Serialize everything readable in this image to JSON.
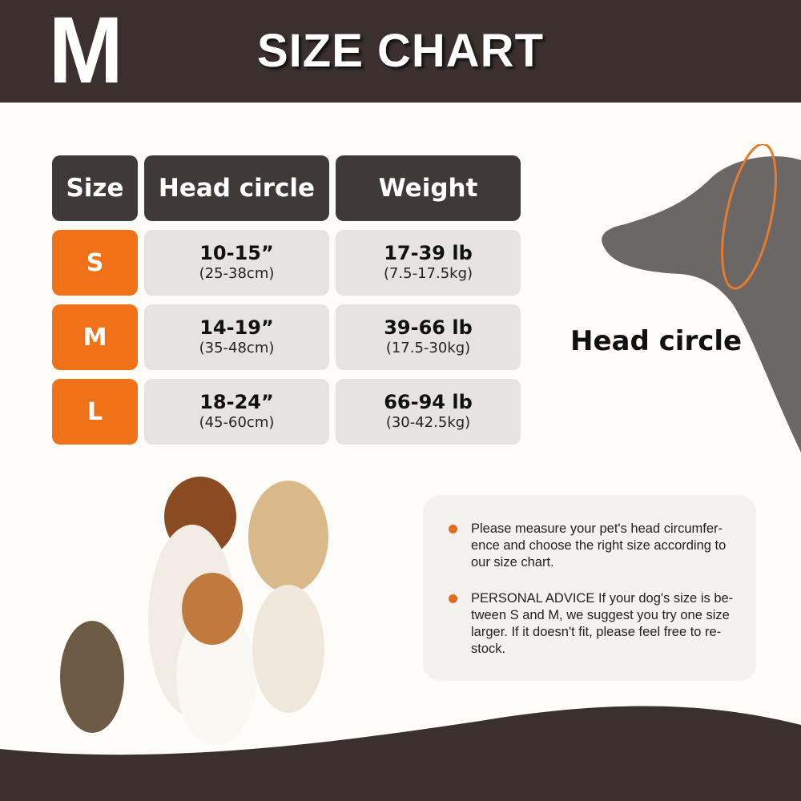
{
  "header": {
    "size_letter": "M",
    "title": "SIZE CHART"
  },
  "table": {
    "headers": [
      "Size",
      "Head circle",
      "Weight"
    ],
    "rows": [
      {
        "size": "S",
        "head": "10-15”",
        "head_cm": "(25-38cm)",
        "weight": "17-39 lb",
        "weight_kg": "(7.5-17.5kg)"
      },
      {
        "size": "M",
        "head": "14-19”",
        "head_cm": "(35-48cm)",
        "weight": "39-66 lb",
        "weight_kg": "(17.5-30kg)"
      },
      {
        "size": "L",
        "head": "18-24”",
        "head_cm": "(45-60cm)",
        "weight": "66-94 lb",
        "weight_kg": "(30-42.5kg)"
      }
    ]
  },
  "diagram": {
    "label": "Head circle"
  },
  "notes": [
    "Please measure your pet's head circumfer-ence and choose the right size according to our size chart.",
    "PERSONAL ADVICE If your dog's size is be-tween S and M, we suggest you try one size larger. If it doesn't fit, please feel free to re-stock."
  ],
  "colors": {
    "dark": "#3b302e",
    "accent": "#f07118",
    "cell": "#e5e4e1"
  }
}
